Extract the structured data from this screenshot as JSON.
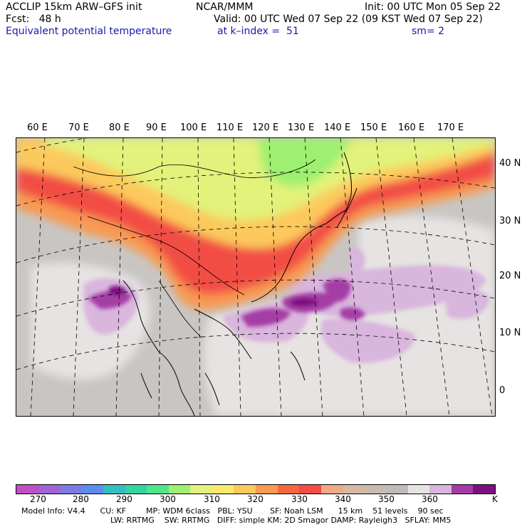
{
  "header": {
    "line1_left": "ACCLIP 15km ARW–GFS init",
    "line1_mid": "NCAR/MMM",
    "line1_right": "Init: 00 UTC Mon 05 Sep 22",
    "line2_left": "Fcst:   48 h",
    "line2_right": "Valid: 00 UTC Wed 07 Sep 22 (09 KST Wed 07 Sep 22)",
    "line3_left": "Equivalent potential temperature",
    "line3_mid": "at k–index =  51",
    "line3_right": "sm= 2"
  },
  "map": {
    "longitude_labels": [
      "60 E",
      "70 E",
      "80 E",
      "90 E",
      "100 E",
      "110 E",
      "120 E",
      "130 E",
      "140 E",
      "150 E",
      "160 E",
      "170 E"
    ],
    "latitude_labels": [
      "40 N",
      "30 N",
      "20 N",
      "10 N",
      "0"
    ]
  },
  "colorbar": {
    "colors": [
      "#c24ec6",
      "#a064d8",
      "#7f7ae6",
      "#5c8cf0",
      "#34bfbf",
      "#30d8a0",
      "#4ee68a",
      "#9ef070",
      "#e2f27a",
      "#fbe96a",
      "#fcc95c",
      "#f89a52",
      "#f5683c",
      "#f24d44",
      "#f0a88a",
      "#d8b8a4",
      "#c8bcb2",
      "#bebbb8",
      "#e6e3e2",
      "#d9b6dd",
      "#a53ca6",
      "#7a117e"
    ],
    "tick_labels": [
      "270",
      "280",
      "290",
      "300",
      "310",
      "320",
      "330",
      "340",
      "350",
      "360",
      "K"
    ]
  },
  "footer": {
    "line1": "Model Info: V4.4      CU: KF        MP: WDM 6class   PBL: YSU       SF: Noah LSM      15 km    51 levels    90 sec",
    "line2": "LW: RRTMG    SW: RRTMG   DIFF: simple KM: 2D Smagor DAMP: Rayleigh3   SFLAY: MM5"
  }
}
